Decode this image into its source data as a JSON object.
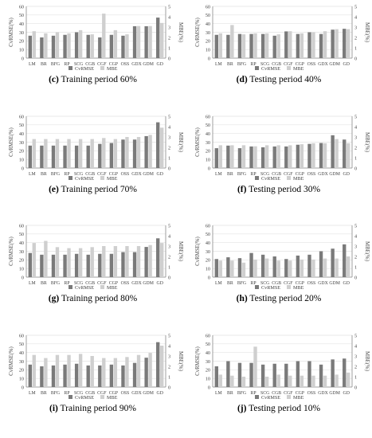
{
  "figure": {
    "colors": {
      "cvrmse": "#7a7a7a",
      "mbe": "#cfcfcf",
      "axis": "#888888",
      "grid": "#e3e3e3"
    },
    "legend": {
      "cvrmse": "CvRMSE",
      "mbe": "MBE"
    }
  },
  "chart_data": [
    {
      "type": "bar",
      "panel_letter": "(c)",
      "title": "Training period 60%",
      "categories": [
        "LM",
        "BR",
        "BFG",
        "RP",
        "SCG",
        "CGB",
        "CGF",
        "CGP",
        "OSS",
        "GDX",
        "GDM",
        "GD"
      ],
      "ylabel": "CvRMSE(%)",
      "y2label": "MBE(%)",
      "ylim": [
        0,
        60
      ],
      "y2lim": [
        0,
        5
      ],
      "yticks": [
        0,
        10,
        20,
        30,
        40,
        50,
        60
      ],
      "y2ticks": [
        0,
        1,
        2,
        3,
        4,
        5
      ],
      "legend_position": "bottom",
      "series": [
        {
          "name": "CvRMSE",
          "axis": "left",
          "values": [
            26,
            24,
            26,
            27,
            30,
            27,
            24,
            27,
            26,
            37,
            37,
            47
          ]
        },
        {
          "name": "MBE",
          "axis": "right",
          "values": [
            2.6,
            2.4,
            2.5,
            2.4,
            2.7,
            2.3,
            4.3,
            2.7,
            2.3,
            3.1,
            3.1,
            3.4
          ]
        }
      ]
    },
    {
      "type": "bar",
      "panel_letter": "(d)",
      "title": "Testing period 40%",
      "categories": [
        "LM",
        "BR",
        "BFG",
        "RP",
        "SCG",
        "CGB",
        "CGF",
        "CGP",
        "OSS",
        "GDX",
        "GDM",
        "GD"
      ],
      "ylabel": "CvRMSE(%)",
      "y2label": "MBE(%)",
      "ylim": [
        0,
        60
      ],
      "y2lim": [
        0,
        5
      ],
      "yticks": [
        0,
        10,
        20,
        30,
        40,
        50,
        60
      ],
      "y2ticks": [
        0,
        1,
        2,
        3,
        4,
        5
      ],
      "legend_position": "bottom",
      "series": [
        {
          "name": "CvRMSE",
          "axis": "left",
          "values": [
            27,
            27,
            28,
            28,
            28,
            26,
            31,
            28,
            30,
            28,
            33,
            34
          ]
        },
        {
          "name": "MBE",
          "axis": "right",
          "values": [
            2.4,
            3.2,
            2.3,
            2.4,
            2.4,
            2.3,
            2.6,
            2.4,
            2.5,
            2.6,
            2.8,
            2.8
          ]
        }
      ]
    },
    {
      "type": "bar",
      "panel_letter": "(e)",
      "title": "Training period 70%",
      "categories": [
        "LM",
        "BR",
        "BFG",
        "RP",
        "SCG",
        "CGB",
        "CGF",
        "CGP",
        "OSS",
        "GDX",
        "GDM",
        "GD"
      ],
      "ylabel": "CvRMSE(%)",
      "y2label": "MBE(%)",
      "ylim": [
        0,
        60
      ],
      "y2lim": [
        0,
        5
      ],
      "yticks": [
        0,
        10,
        20,
        30,
        40,
        50,
        60
      ],
      "y2ticks": [
        0,
        1,
        2,
        3,
        4,
        5
      ],
      "legend_position": "bottom",
      "series": [
        {
          "name": "CvRMSE",
          "axis": "left",
          "values": [
            26,
            26,
            26,
            26,
            26,
            26,
            28,
            29,
            33,
            33,
            37,
            53
          ]
        },
        {
          "name": "MBE",
          "axis": "right",
          "values": [
            2.8,
            2.8,
            2.8,
            2.8,
            2.8,
            2.8,
            2.9,
            2.8,
            3.0,
            3.0,
            3.2,
            3.9
          ]
        }
      ]
    },
    {
      "type": "bar",
      "panel_letter": "(f)",
      "title": "Testing period 30%",
      "categories": [
        "LM",
        "BR",
        "BFG",
        "RP",
        "SCG",
        "CGB",
        "CGF",
        "CGP",
        "OSS",
        "GDX",
        "GDM",
        "GD"
      ],
      "ylabel": "CvRMSE(%)",
      "y2label": "MBE(%)",
      "ylim": [
        0,
        60
      ],
      "y2lim": [
        0,
        5
      ],
      "yticks": [
        0,
        10,
        20,
        30,
        40,
        50,
        60
      ],
      "y2ticks": [
        0,
        1,
        2,
        3,
        4,
        5
      ],
      "legend_position": "bottom",
      "series": [
        {
          "name": "CvRMSE",
          "axis": "left",
          "values": [
            23,
            26,
            23,
            25,
            24,
            25,
            25,
            27,
            28,
            29,
            38,
            33
          ]
        },
        {
          "name": "MBE",
          "axis": "right",
          "values": [
            2.2,
            2.2,
            2.2,
            2.1,
            2.2,
            2.2,
            2.2,
            2.3,
            2.4,
            2.4,
            2.8,
            2.4
          ]
        }
      ]
    },
    {
      "type": "bar",
      "panel_letter": "(g)",
      "title": "Training period 80%",
      "categories": [
        "LM",
        "BR",
        "BFG",
        "RP",
        "SCG",
        "CGB",
        "CGF",
        "CGP",
        "OSS",
        "GDX",
        "GDM",
        "GD"
      ],
      "ylabel": "CvRMSE(%)",
      "y2label": "MBE(%)",
      "ylim": [
        0,
        60
      ],
      "y2lim": [
        0,
        5
      ],
      "yticks": [
        0,
        10,
        20,
        30,
        40,
        50,
        60
      ],
      "y2ticks": [
        0,
        1,
        2,
        3,
        4,
        5
      ],
      "legend_position": "bottom",
      "series": [
        {
          "name": "CvRMSE",
          "axis": "left",
          "values": [
            28,
            26,
            26,
            26,
            27,
            26,
            27,
            27,
            29,
            29,
            35,
            45
          ]
        },
        {
          "name": "MBE",
          "axis": "right",
          "values": [
            3.3,
            3.5,
            2.9,
            2.8,
            2.8,
            2.9,
            3.0,
            3.0,
            3.0,
            3.0,
            3.1,
            3.3
          ]
        }
      ]
    },
    {
      "type": "bar",
      "panel_letter": "(h)",
      "title": "Testing period 20%",
      "categories": [
        "LM",
        "BR",
        "BFG",
        "RP",
        "SCG",
        "CGB",
        "CGF",
        "CGP",
        "OSS",
        "GDX",
        "GDM",
        "GD"
      ],
      "ylabel": "CvRMSE(%)",
      "y2label": "MBE(%)",
      "ylim": [
        0,
        60
      ],
      "y2lim": [
        0,
        5
      ],
      "yticks": [
        0,
        10,
        20,
        30,
        40,
        50,
        60
      ],
      "y2ticks": [
        0,
        1,
        2,
        3,
        4,
        5
      ],
      "legend_position": "bottom",
      "series": [
        {
          "name": "CvRMSE",
          "axis": "left",
          "values": [
            21,
            23,
            22,
            28,
            26,
            24,
            21,
            25,
            26,
            30,
            33,
            38
          ]
        },
        {
          "name": "MBE",
          "axis": "right",
          "values": [
            1.6,
            1.6,
            1.4,
            1.7,
            1.8,
            1.6,
            1.6,
            1.7,
            1.7,
            1.8,
            1.8,
            2.0
          ]
        }
      ]
    },
    {
      "type": "bar",
      "panel_letter": "(i)",
      "title": "Training period 90%",
      "categories": [
        "LM",
        "BR",
        "BFG",
        "RP",
        "SCG",
        "CGB",
        "CGF",
        "CGP",
        "OSS",
        "GDX",
        "GDM",
        "GD"
      ],
      "ylabel": "CvRMSE(%)",
      "y2label": "MBE(%)",
      "ylim": [
        0,
        60
      ],
      "y2lim": [
        0,
        5
      ],
      "yticks": [
        0,
        10,
        20,
        30,
        40,
        50,
        60
      ],
      "y2ticks": [
        0,
        1,
        2,
        3,
        4,
        5
      ],
      "legend_position": "bottom",
      "series": [
        {
          "name": "CvRMSE",
          "axis": "left",
          "values": [
            26,
            24,
            25,
            26,
            27,
            25,
            25,
            26,
            25,
            28,
            34,
            52
          ]
        },
        {
          "name": "MBE",
          "axis": "right",
          "values": [
            3.1,
            2.8,
            3.1,
            3.1,
            3.2,
            3.0,
            2.8,
            2.8,
            2.9,
            3.1,
            3.3,
            4.0
          ]
        }
      ]
    },
    {
      "type": "bar",
      "panel_letter": "(j)",
      "title": "Testing period 10%",
      "categories": [
        "LM",
        "BR",
        "BFG",
        "RP",
        "SCG",
        "CGB",
        "CGF",
        "CGP",
        "OSS",
        "GDX",
        "GDM",
        "GD"
      ],
      "ylabel": "CvRMSE(%)",
      "y2label": "MBE(%)",
      "ylim": [
        0,
        60
      ],
      "y2lim": [
        0,
        5
      ],
      "yticks": [
        0,
        10,
        20,
        30,
        40,
        50,
        60
      ],
      "y2ticks": [
        0,
        1,
        2,
        3,
        4,
        5
      ],
      "legend_position": "bottom",
      "series": [
        {
          "name": "CvRMSE",
          "axis": "left",
          "values": [
            24,
            30,
            28,
            28,
            26,
            27,
            27,
            30,
            30,
            26,
            32,
            33
          ]
        },
        {
          "name": "MBE",
          "axis": "right",
          "values": [
            1.2,
            1.1,
            1.0,
            3.9,
            1.0,
            1.2,
            1.1,
            1.1,
            1.1,
            1.1,
            1.2,
            1.4
          ]
        }
      ]
    }
  ]
}
